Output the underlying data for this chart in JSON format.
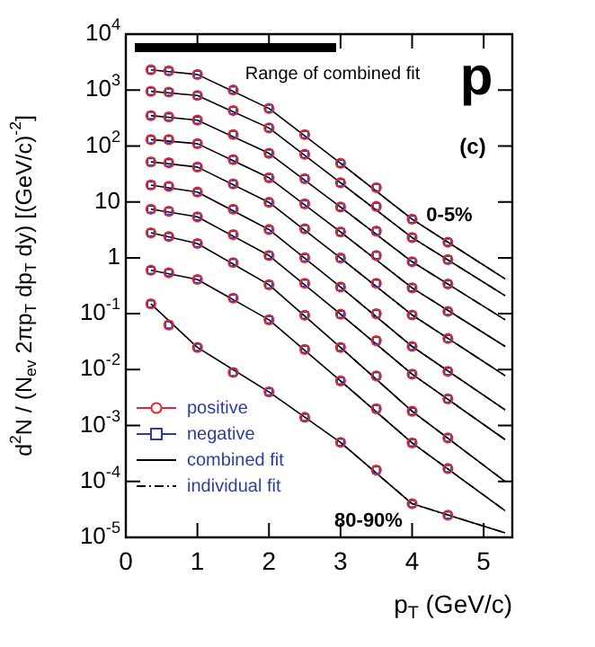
{
  "chart_data": {
    "type": "scatter",
    "ylabel": "d$^{2}$N / (N$_{ev}$ 2πp$_{T}$ dp$_{T}$ dy) [(GeV/c)$^{-2}$]",
    "xlabel": "p$_{T}$ (GeV/c)",
    "x": [
      0.35,
      0.6,
      1,
      1.5,
      2,
      2.5,
      3,
      3.5,
      4,
      4.5
    ],
    "xlim": [
      0,
      5.4
    ],
    "xticks": [
      0,
      1,
      2,
      3,
      4,
      5
    ],
    "ylim": [
      1e-05,
      10000
    ],
    "log": "y",
    "yticks": [
      {
        "value": 1e-05,
        "label": "10$^{-5}$"
      },
      {
        "value": 0.0001,
        "label": "10$^{-4}$"
      },
      {
        "value": 0.001,
        "label": "10$^{-3}$"
      },
      {
        "value": 0.01,
        "label": "10$^{-2}$"
      },
      {
        "value": 0.1,
        "label": "10$^{-1}$"
      },
      1,
      10,
      {
        "value": 100,
        "label": "10$^{2}$"
      },
      {
        "value": 1000,
        "label": "10$^{3}$"
      },
      {
        "value": 10000,
        "label": "10$^{4}$"
      }
    ],
    "grid": false,
    "legend": "bottom left",
    "annotations": [
      "Range of combined fit",
      "p",
      "(c)",
      "0-5%",
      "80-90%"
    ],
    "series": [
      {
        "name": "positive",
        "marker": "circle",
        "color": "#e3262e",
        "values": [
          2300,
          2200,
          1900,
          1000,
          470,
          160,
          49,
          18,
          4.9,
          1.9
        ]
      },
      {
        "name": "negative",
        "marker": "square",
        "color": "#2d3e9a",
        "values": [
          2300,
          2200,
          1900,
          1000,
          470,
          160,
          49,
          18,
          4.9,
          1.9
        ]
      },
      {
        "name": "combined fit",
        "type": "line",
        "marker": "none",
        "line_style": "solid",
        "color": "#000000",
        "x": [
          0.35,
          1,
          2,
          3,
          4,
          5.3
        ],
        "values": [
          2300,
          1900,
          470,
          49,
          4.9,
          0.42
        ]
      },
      {
        "name": "individual fit",
        "type": "line",
        "marker": "none",
        "line_style": "dashed",
        "color": "#000000",
        "x": [
          3,
          4,
          5.3
        ],
        "values": [
          49,
          4.9,
          0.42
        ]
      },
      {
        "marker": "circle",
        "color": "#e3262e",
        "values": [
          950,
          920,
          800,
          430,
          210,
          71,
          22,
          8.3,
          2.3,
          0.93
        ]
      },
      {
        "marker": "square",
        "color": "#2d3e9a",
        "values": [
          950,
          920,
          800,
          430,
          210,
          71,
          22,
          8.3,
          2.3,
          0.93
        ]
      },
      {
        "type": "line",
        "marker": "none",
        "line_style": "solid",
        "color": "#000000",
        "x": [
          0.35,
          1,
          2,
          3,
          4,
          5.3
        ],
        "values": [
          950,
          800,
          210,
          22,
          2.3,
          0.21
        ]
      },
      {
        "type": "line",
        "marker": "none",
        "line_style": "dashed",
        "color": "#000000",
        "x": [
          3,
          4,
          5.3
        ],
        "values": [
          22,
          2.3,
          0.21
        ]
      },
      {
        "marker": "circle",
        "color": "#e3262e",
        "values": [
          350,
          330,
          290,
          160,
          74,
          26,
          8.1,
          3.0,
          0.85,
          0.34
        ]
      },
      {
        "marker": "square",
        "color": "#2d3e9a",
        "values": [
          350,
          330,
          290,
          160,
          74,
          26,
          8.1,
          3.0,
          0.85,
          0.34
        ]
      },
      {
        "type": "line",
        "marker": "none",
        "line_style": "solid",
        "color": "#000000",
        "x": [
          0.35,
          1,
          2,
          3,
          4,
          5.3
        ],
        "values": [
          350,
          290,
          74,
          8.1,
          0.85,
          0.078
        ]
      },
      {
        "type": "line",
        "marker": "none",
        "line_style": "dashed",
        "color": "#000000",
        "x": [
          3,
          4,
          5.3
        ],
        "values": [
          8.1,
          0.85,
          0.078
        ]
      },
      {
        "marker": "circle",
        "color": "#e3262e",
        "values": [
          130,
          130,
          110,
          57,
          27,
          9.2,
          2.9,
          1.1,
          0.29,
          0.11
        ]
      },
      {
        "marker": "square",
        "color": "#2d3e9a",
        "values": [
          130,
          130,
          110,
          57,
          27,
          9.2,
          2.9,
          1.1,
          0.29,
          0.11
        ]
      },
      {
        "type": "line",
        "marker": "none",
        "line_style": "solid",
        "color": "#000000",
        "x": [
          0.35,
          1,
          2,
          3,
          4,
          5.3
        ],
        "values": [
          130,
          110,
          27,
          2.9,
          0.29,
          0.026
        ]
      },
      {
        "type": "line",
        "marker": "none",
        "line_style": "dashed",
        "color": "#000000",
        "x": [
          3,
          4,
          5.3
        ],
        "values": [
          2.9,
          0.29,
          0.026
        ]
      },
      {
        "marker": "circle",
        "color": "#e3262e",
        "values": [
          52,
          50,
          42,
          21,
          9.8,
          3.3,
          0.99,
          0.35,
          0.095,
          0.036
        ]
      },
      {
        "marker": "square",
        "color": "#2d3e9a",
        "values": [
          52,
          50,
          42,
          21,
          9.8,
          3.3,
          0.99,
          0.35,
          0.095,
          0.036
        ]
      },
      {
        "type": "line",
        "marker": "none",
        "line_style": "solid",
        "color": "#000000",
        "x": [
          0.35,
          1,
          2,
          3,
          4,
          5.3
        ],
        "values": [
          52,
          42,
          9.8,
          0.99,
          0.095,
          0.0078
        ]
      },
      {
        "type": "line",
        "marker": "none",
        "line_style": "dashed",
        "color": "#000000",
        "x": [
          3,
          4,
          5.3
        ],
        "values": [
          0.99,
          0.095,
          0.0078
        ]
      },
      {
        "marker": "circle",
        "color": "#e3262e",
        "values": [
          20,
          19,
          15,
          7.4,
          3.2,
          1.0,
          0.3,
          0.1,
          0.026,
          0.0093
        ]
      },
      {
        "marker": "square",
        "color": "#2d3e9a",
        "values": [
          20,
          19,
          15,
          7.4,
          3.2,
          1.0,
          0.3,
          0.1,
          0.026,
          0.0093
        ]
      },
      {
        "type": "line",
        "marker": "none",
        "line_style": "solid",
        "color": "#000000",
        "x": [
          0.35,
          1,
          2,
          3,
          4,
          5.3
        ],
        "values": [
          20,
          15,
          3.2,
          0.3,
          0.026,
          0.0019
        ]
      },
      {
        "type": "line",
        "marker": "none",
        "line_style": "dashed",
        "color": "#000000",
        "x": [
          3,
          4,
          5.3
        ],
        "values": [
          0.3,
          0.026,
          0.0019
        ]
      },
      {
        "marker": "circle",
        "color": "#e3262e",
        "values": [
          7.4,
          6.8,
          5.4,
          2.6,
          1.1,
          0.35,
          0.098,
          0.033,
          0.0083,
          0.003
        ]
      },
      {
        "marker": "square",
        "color": "#2d3e9a",
        "values": [
          7.4,
          6.8,
          5.4,
          2.6,
          1.1,
          0.35,
          0.098,
          0.033,
          0.0083,
          0.003
        ]
      },
      {
        "type": "line",
        "marker": "none",
        "line_style": "solid",
        "color": "#000000",
        "x": [
          0.35,
          1,
          2,
          3,
          4,
          5.3
        ],
        "values": [
          7.4,
          5.4,
          1.1,
          0.098,
          0.0083,
          0.00056
        ]
      },
      {
        "type": "line",
        "marker": "none",
        "line_style": "dashed",
        "color": "#000000",
        "x": [
          3,
          4,
          5.3
        ],
        "values": [
          0.098,
          0.0083,
          0.00056
        ]
      },
      {
        "marker": "circle",
        "color": "#e3262e",
        "values": [
          2.8,
          2.4,
          1.8,
          0.82,
          0.33,
          0.094,
          0.025,
          0.0077,
          0.0018,
          0.0006
        ]
      },
      {
        "marker": "square",
        "color": "#2d3e9a",
        "values": [
          2.8,
          2.4,
          1.8,
          0.82,
          0.33,
          0.094,
          0.025,
          0.0077,
          0.0018,
          0.0006
        ]
      },
      {
        "type": "line",
        "marker": "none",
        "line_style": "solid",
        "color": "#000000",
        "x": [
          0.35,
          1,
          2,
          3,
          4,
          5.3
        ],
        "values": [
          2.8,
          1.8,
          0.33,
          0.025,
          0.0018,
          0.0001
        ]
      },
      {
        "type": "line",
        "marker": "none",
        "line_style": "dashed",
        "color": "#000000",
        "x": [
          3,
          4,
          5.3
        ],
        "values": [
          0.025,
          0.0018,
          0.0001
        ]
      },
      {
        "marker": "circle",
        "color": "#e3262e",
        "values": [
          0.6,
          0.54,
          0.41,
          0.19,
          0.078,
          0.023,
          0.0063,
          0.002,
          0.00049,
          0.00017
        ]
      },
      {
        "marker": "square",
        "color": "#2d3e9a",
        "values": [
          0.6,
          0.54,
          0.41,
          0.19,
          0.078,
          0.023,
          0.0063,
          0.002,
          0.00049,
          0.00017
        ]
      },
      {
        "type": "line",
        "marker": "none",
        "line_style": "solid",
        "color": "#000000",
        "x": [
          0.35,
          1,
          2,
          3,
          4,
          5.3
        ],
        "values": [
          0.6,
          0.41,
          0.078,
          0.0063,
          0.00049,
          3e-05
        ]
      },
      {
        "type": "line",
        "marker": "none",
        "line_style": "dashed",
        "color": "#000000",
        "x": [
          3,
          4,
          5.3
        ],
        "values": [
          0.0063,
          0.00049,
          3e-05
        ]
      },
      {
        "marker": "circle",
        "color": "#e3262e",
        "values": [
          0.15,
          0.063,
          0.025,
          0.0089,
          0.004,
          0.0014,
          0.0005,
          0.00016,
          4e-05,
          2.5e-05
        ]
      },
      {
        "marker": "square",
        "color": "#2d3e9a",
        "values": [
          0.15,
          0.063,
          0.025,
          0.0089,
          0.004,
          0.0014,
          0.0005,
          0.00016,
          4e-05,
          2.5e-05
        ]
      },
      {
        "type": "line",
        "marker": "none",
        "line_style": "solid",
        "color": "#000000",
        "x": [
          0.35,
          1,
          2,
          3,
          4,
          5.3
        ],
        "values": [
          0.15,
          0.025,
          0.004,
          0.0005,
          4e-05,
          1.2e-05
        ]
      },
      {
        "type": "line",
        "marker": "none",
        "line_style": "dashed",
        "color": "#000000",
        "x": [
          3,
          4,
          5.3
        ],
        "values": [
          0.0005,
          4e-05,
          1.2e-05
        ]
      }
    ]
  }
}
